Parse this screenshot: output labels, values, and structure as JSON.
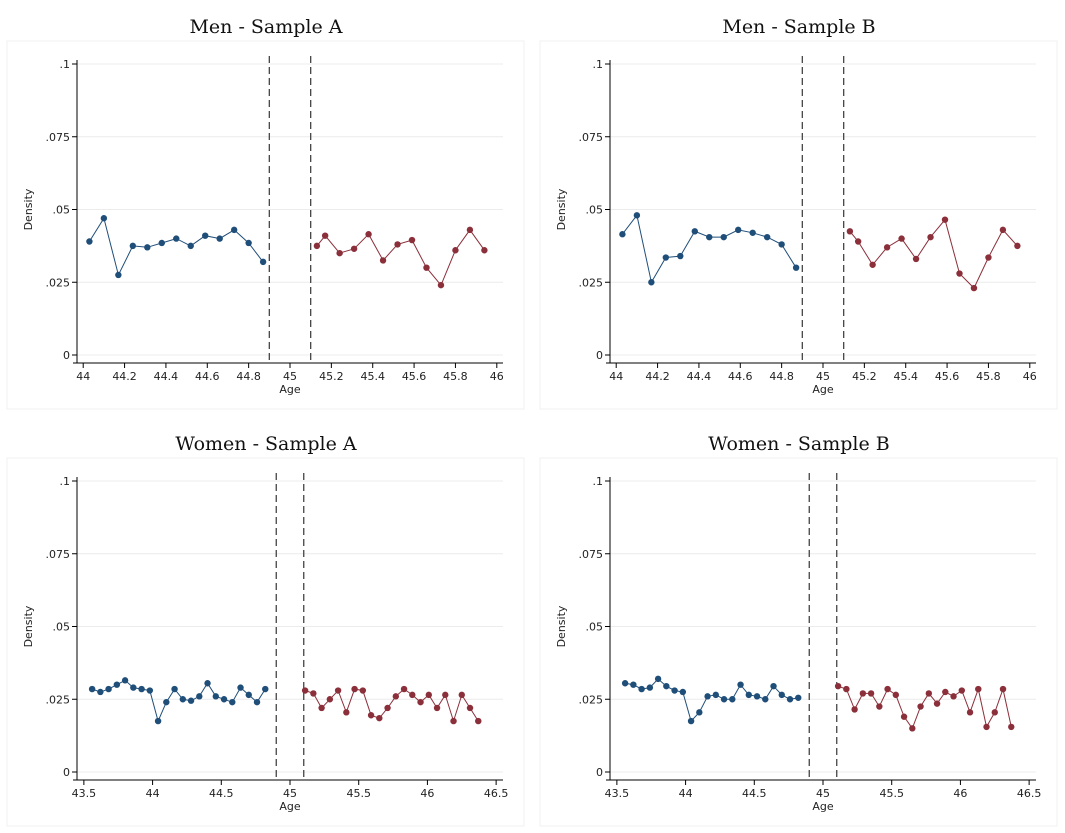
{
  "colors": {
    "left_series": "#1f4e79",
    "right_series": "#8b2f3a",
    "cutoff_line": "#444444",
    "grid": "#ececec"
  },
  "chart_data": [
    {
      "type": "line",
      "title": "Men - Sample A",
      "xlabel": "Age",
      "ylabel": "Density",
      "xlim": [
        43.97,
        46.03
      ],
      "ylim": [
        0,
        0.1
      ],
      "xticks": [
        44,
        44.2,
        44.4,
        44.6,
        44.8,
        45,
        45.2,
        45.4,
        45.6,
        45.8,
        46
      ],
      "xtick_labels": [
        "44",
        "44.2",
        "44.4",
        "44.6",
        "44.8",
        "45",
        "45.2",
        "45.4",
        "45.6",
        "45.8",
        "46"
      ],
      "yticks": [
        0,
        0.025,
        0.05,
        0.075,
        0.1
      ],
      "ytick_labels": [
        "0",
        ".025",
        ".05",
        ".075",
        ".1"
      ],
      "cutoffs": [
        44.9,
        45.1
      ],
      "grid": true,
      "legend": false,
      "series": [
        {
          "x": [
            44.03,
            44.1,
            44.17,
            44.24,
            44.31,
            44.38,
            44.45,
            44.52,
            44.59,
            44.66,
            44.73,
            44.8,
            44.87
          ],
          "y": [
            0.039,
            0.047,
            0.0275,
            0.0375,
            0.037,
            0.0385,
            0.04,
            0.0375,
            0.041,
            0.04,
            0.043,
            0.0385,
            0.032
          ]
        },
        {
          "x": [
            45.13,
            45.17,
            45.24,
            45.31,
            45.38,
            45.45,
            45.52,
            45.59,
            45.66,
            45.73,
            45.8,
            45.87,
            45.94
          ],
          "y": [
            0.0375,
            0.041,
            0.035,
            0.0365,
            0.0415,
            0.0325,
            0.038,
            0.0395,
            0.03,
            0.024,
            0.036,
            0.043,
            0.036
          ]
        }
      ]
    },
    {
      "type": "line",
      "title": "Men - Sample B",
      "xlabel": "Age",
      "ylabel": "Density",
      "xlim": [
        43.97,
        46.03
      ],
      "ylim": [
        0,
        0.1
      ],
      "xticks": [
        44,
        44.2,
        44.4,
        44.6,
        44.8,
        45,
        45.2,
        45.4,
        45.6,
        45.8,
        46
      ],
      "xtick_labels": [
        "44",
        "44.2",
        "44.4",
        "44.6",
        "44.8",
        "45",
        "45.2",
        "45.4",
        "45.6",
        "45.8",
        "46"
      ],
      "yticks": [
        0,
        0.025,
        0.05,
        0.075,
        0.1
      ],
      "ytick_labels": [
        "0",
        ".025",
        ".05",
        ".075",
        ".1"
      ],
      "cutoffs": [
        44.9,
        45.1
      ],
      "grid": true,
      "legend": false,
      "series": [
        {
          "x": [
            44.03,
            44.1,
            44.17,
            44.24,
            44.31,
            44.38,
            44.45,
            44.52,
            44.59,
            44.66,
            44.73,
            44.8,
            44.87
          ],
          "y": [
            0.0415,
            0.048,
            0.025,
            0.0335,
            0.034,
            0.0425,
            0.0405,
            0.0405,
            0.043,
            0.042,
            0.0405,
            0.038,
            0.03
          ]
        },
        {
          "x": [
            45.13,
            45.17,
            45.24,
            45.31,
            45.38,
            45.45,
            45.52,
            45.59,
            45.66,
            45.73,
            45.8,
            45.87,
            45.94
          ],
          "y": [
            0.0425,
            0.039,
            0.031,
            0.037,
            0.04,
            0.033,
            0.0405,
            0.0465,
            0.028,
            0.023,
            0.0335,
            0.043,
            0.0375
          ]
        }
      ]
    },
    {
      "type": "line",
      "title": "Women - Sample A",
      "xlabel": "Age",
      "ylabel": "Density",
      "xlim": [
        43.45,
        46.55
      ],
      "ylim": [
        0,
        0.1
      ],
      "xticks": [
        43.5,
        44,
        44.5,
        45,
        45.5,
        46,
        46.5
      ],
      "xtick_labels": [
        "43.5",
        "44",
        "44.5",
        "45",
        "45.5",
        "46",
        "46.5"
      ],
      "yticks": [
        0,
        0.025,
        0.05,
        0.075,
        0.1
      ],
      "ytick_labels": [
        "0",
        ".025",
        ".05",
        ".075",
        ".1"
      ],
      "cutoffs": [
        44.9,
        45.1
      ],
      "grid": true,
      "legend": false,
      "series": [
        {
          "x": [
            43.56,
            43.62,
            43.68,
            43.74,
            43.8,
            43.86,
            43.92,
            43.98,
            44.04,
            44.1,
            44.16,
            44.22,
            44.28,
            44.34,
            44.4,
            44.46,
            44.52,
            44.58,
            44.64,
            44.7,
            44.76,
            44.82
          ],
          "y": [
            0.0285,
            0.0275,
            0.0285,
            0.03,
            0.0315,
            0.029,
            0.0285,
            0.028,
            0.0175,
            0.024,
            0.0285,
            0.025,
            0.0245,
            0.026,
            0.0305,
            0.026,
            0.025,
            0.024,
            0.029,
            0.0265,
            0.024,
            0.0285
          ]
        },
        {
          "x": [
            45.11,
            45.17,
            45.23,
            45.29,
            45.35,
            45.41,
            45.47,
            45.53,
            45.59,
            45.65,
            45.71,
            45.77,
            45.83,
            45.89,
            45.95,
            46.01,
            46.07,
            46.13,
            46.19,
            46.25,
            46.31,
            46.37
          ],
          "y": [
            0.028,
            0.027,
            0.022,
            0.025,
            0.028,
            0.0205,
            0.0285,
            0.028,
            0.0195,
            0.0185,
            0.022,
            0.026,
            0.0285,
            0.0265,
            0.024,
            0.0265,
            0.022,
            0.0265,
            0.0175,
            0.0265,
            0.022,
            0.0175
          ]
        }
      ]
    },
    {
      "type": "line",
      "title": "Women - Sample B",
      "xlabel": "Age",
      "ylabel": "Density",
      "xlim": [
        43.45,
        46.55
      ],
      "ylim": [
        0,
        0.1
      ],
      "xticks": [
        43.5,
        44,
        44.5,
        45,
        45.5,
        46,
        46.5
      ],
      "xtick_labels": [
        "43.5",
        "44",
        "44.5",
        "45",
        "45.5",
        "46",
        "46.5"
      ],
      "yticks": [
        0,
        0.025,
        0.05,
        0.075,
        0.1
      ],
      "ytick_labels": [
        "0",
        ".025",
        ".05",
        ".075",
        ".1"
      ],
      "cutoffs": [
        44.9,
        45.1
      ],
      "grid": true,
      "legend": false,
      "series": [
        {
          "x": [
            43.56,
            43.62,
            43.68,
            43.74,
            43.8,
            43.86,
            43.92,
            43.98,
            44.04,
            44.1,
            44.16,
            44.22,
            44.28,
            44.34,
            44.4,
            44.46,
            44.52,
            44.58,
            44.64,
            44.7,
            44.76,
            44.82
          ],
          "y": [
            0.0305,
            0.03,
            0.0285,
            0.029,
            0.032,
            0.0295,
            0.028,
            0.0275,
            0.0175,
            0.0205,
            0.026,
            0.0265,
            0.025,
            0.025,
            0.03,
            0.0265,
            0.026,
            0.025,
            0.0295,
            0.0265,
            0.025,
            0.0255
          ]
        },
        {
          "x": [
            45.11,
            45.17,
            45.23,
            45.29,
            45.35,
            45.41,
            45.47,
            45.53,
            45.59,
            45.65,
            45.71,
            45.77,
            45.83,
            45.89,
            45.95,
            46.01,
            46.07,
            46.13,
            46.19,
            46.25,
            46.31,
            46.37
          ],
          "y": [
            0.0295,
            0.0285,
            0.0215,
            0.027,
            0.027,
            0.0225,
            0.0285,
            0.0265,
            0.019,
            0.015,
            0.0225,
            0.027,
            0.0235,
            0.0275,
            0.026,
            0.028,
            0.0205,
            0.0285,
            0.0155,
            0.0205,
            0.0285,
            0.0155
          ]
        }
      ]
    }
  ]
}
